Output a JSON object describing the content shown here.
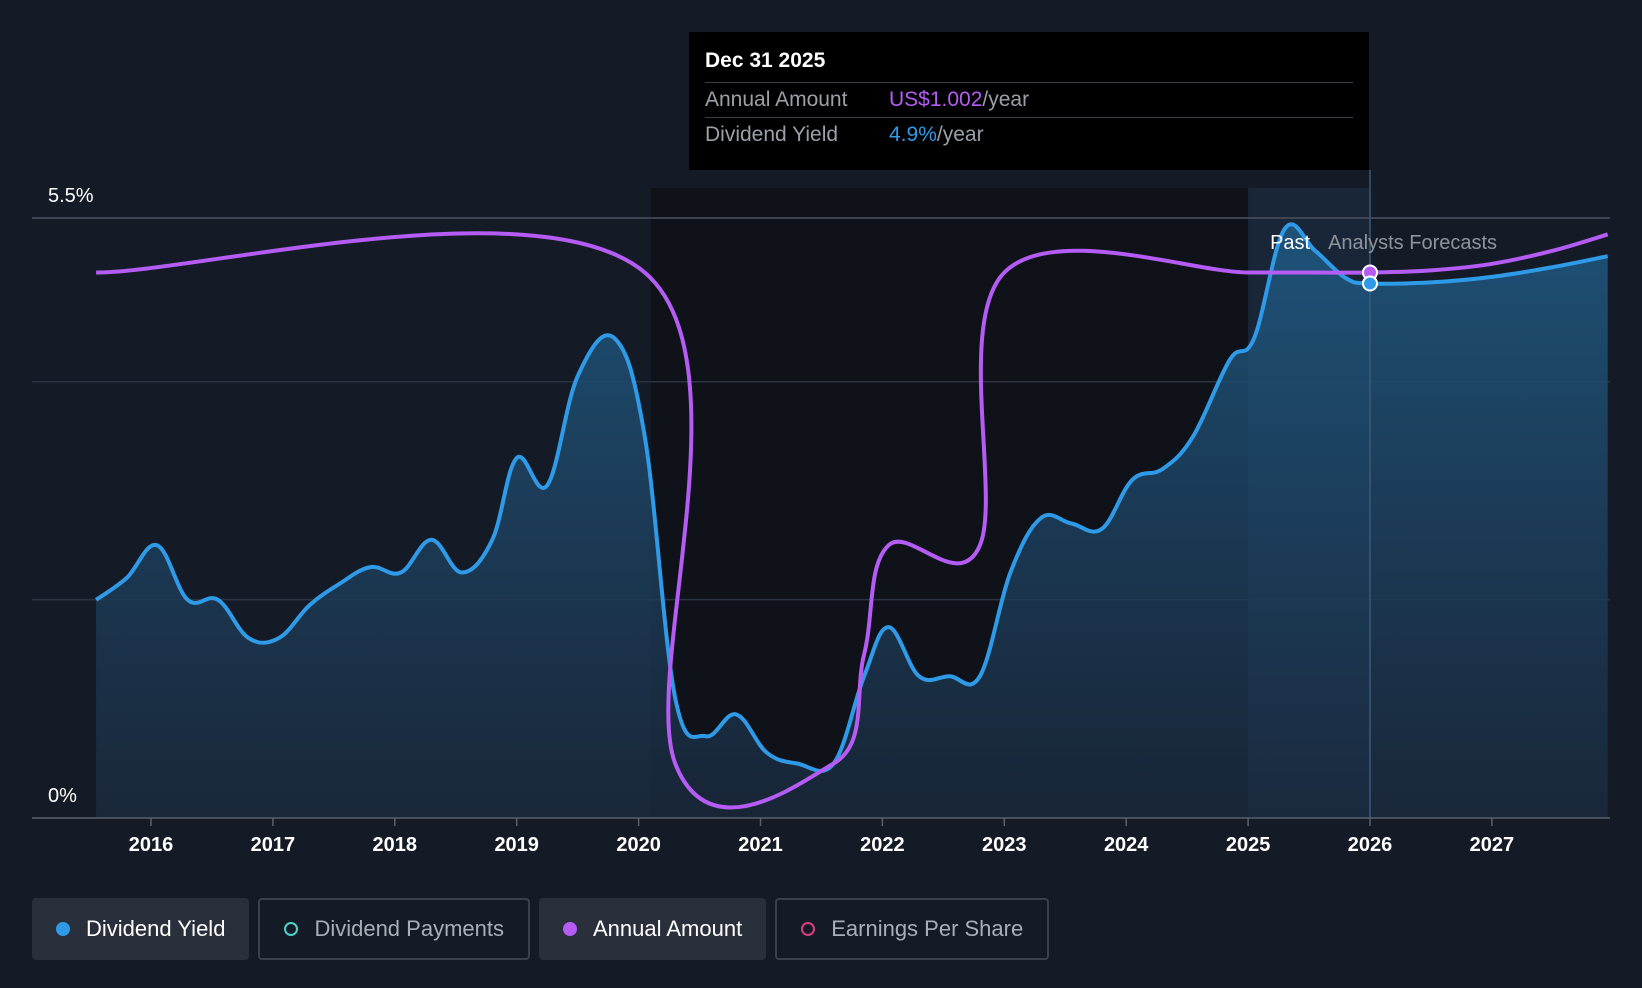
{
  "tooltip": {
    "date": "Dec 31 2025",
    "annual_label": "Annual Amount",
    "annual_value": "US$1.002",
    "annual_unit": "/year",
    "yield_label": "Dividend Yield",
    "yield_value": "4.9%",
    "yield_unit": "/year"
  },
  "regions": {
    "past": "Past",
    "forecast": "Analysts Forecasts"
  },
  "legend": [
    {
      "label": "Dividend Yield",
      "color": "#2e9ae8",
      "active": true,
      "filled": true
    },
    {
      "label": "Dividend Payments",
      "color": "#4fd1c5",
      "active": false,
      "filled": false
    },
    {
      "label": "Annual Amount",
      "color": "#b55cf5",
      "active": true,
      "filled": true
    },
    {
      "label": "Earnings Per Share",
      "color": "#d63f7e",
      "active": false,
      "filled": false
    }
  ],
  "chart_data": {
    "type": "line",
    "title": "",
    "xlabel": "",
    "ylabel": "",
    "x_ticks": [
      "2016",
      "2017",
      "2018",
      "2019",
      "2020",
      "2021",
      "2022",
      "2023",
      "2024",
      "2025",
      "2026",
      "2027"
    ],
    "y_ticks": [
      "0%",
      "5.5%"
    ],
    "ylim": [
      0,
      5.5
    ],
    "xlim": [
      2015.55,
      2027.95
    ],
    "grid": true,
    "legend_position": "bottom",
    "past_forecast_boundary": 2025.0,
    "highlight_x": 2026.0,
    "series": [
      {
        "name": "Dividend Yield",
        "color": "#2e9ae8",
        "fill": true,
        "points": [
          [
            2015.55,
            2.0
          ],
          [
            2015.8,
            2.2
          ],
          [
            2016.05,
            2.5
          ],
          [
            2016.3,
            2.0
          ],
          [
            2016.55,
            2.0
          ],
          [
            2016.8,
            1.65
          ],
          [
            2017.05,
            1.65
          ],
          [
            2017.3,
            1.95
          ],
          [
            2017.55,
            2.15
          ],
          [
            2017.8,
            2.3
          ],
          [
            2018.05,
            2.25
          ],
          [
            2018.3,
            2.55
          ],
          [
            2018.55,
            2.25
          ],
          [
            2018.8,
            2.55
          ],
          [
            2019.0,
            3.3
          ],
          [
            2019.25,
            3.05
          ],
          [
            2019.5,
            4.05
          ],
          [
            2019.8,
            4.4
          ],
          [
            2020.05,
            3.5
          ],
          [
            2020.3,
            1.1
          ],
          [
            2020.55,
            0.75
          ],
          [
            2020.8,
            0.95
          ],
          [
            2021.05,
            0.6
          ],
          [
            2021.3,
            0.5
          ],
          [
            2021.6,
            0.5
          ],
          [
            2021.85,
            1.3
          ],
          [
            2022.05,
            1.75
          ],
          [
            2022.3,
            1.3
          ],
          [
            2022.55,
            1.3
          ],
          [
            2022.8,
            1.3
          ],
          [
            2023.05,
            2.25
          ],
          [
            2023.3,
            2.75
          ],
          [
            2023.55,
            2.7
          ],
          [
            2023.8,
            2.65
          ],
          [
            2024.05,
            3.1
          ],
          [
            2024.3,
            3.2
          ],
          [
            2024.55,
            3.5
          ],
          [
            2024.85,
            4.2
          ],
          [
            2025.05,
            4.4
          ],
          [
            2025.3,
            5.4
          ],
          [
            2025.55,
            5.2
          ],
          [
            2025.8,
            4.95
          ],
          [
            2026.0,
            4.9
          ],
          [
            2026.5,
            4.91
          ],
          [
            2027.0,
            4.96
          ],
          [
            2027.5,
            5.05
          ],
          [
            2027.95,
            5.15
          ]
        ]
      },
      {
        "name": "Annual Amount",
        "color": "#b55cf5",
        "fill": false,
        "points": [
          [
            2015.55,
            5.0
          ],
          [
            2020.05,
            5.0
          ],
          [
            2020.3,
            0.5
          ],
          [
            2021.6,
            0.5
          ],
          [
            2021.85,
            1.5
          ],
          [
            2022.05,
            2.5
          ],
          [
            2022.8,
            2.5
          ],
          [
            2023.0,
            5.0
          ],
          [
            2025.0,
            5.0
          ],
          [
            2025.5,
            5.0
          ],
          [
            2026.0,
            5.0
          ],
          [
            2026.5,
            5.02
          ],
          [
            2027.0,
            5.08
          ],
          [
            2027.5,
            5.2
          ],
          [
            2027.95,
            5.35
          ]
        ]
      }
    ]
  }
}
